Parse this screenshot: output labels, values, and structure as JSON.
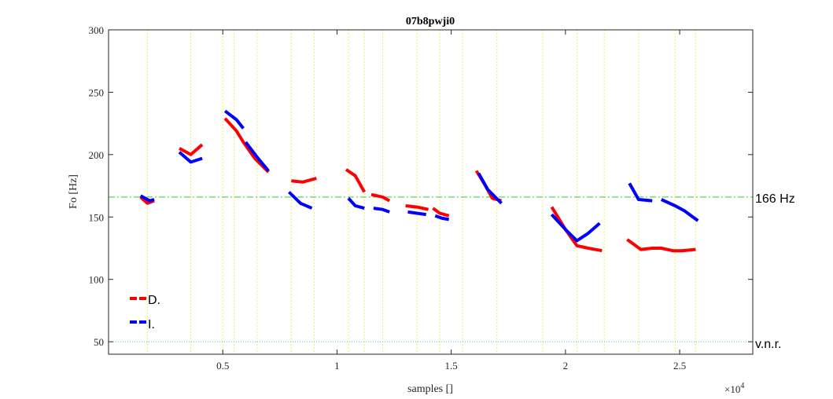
{
  "chart_data": {
    "type": "line",
    "title": "07b8pwji0",
    "xlabel": "samples []",
    "ylabel": "Fo [Hz]",
    "x_exponent": "×10",
    "x_exponent_power": "4",
    "xlim": [
      0,
      28200
    ],
    "ylim": [
      40,
      300
    ],
    "xticks": [
      5000,
      10000,
      15000,
      20000,
      25000
    ],
    "xtick_labels": [
      "0.5",
      "1",
      "1.5",
      "2",
      "2.5"
    ],
    "yticks": [
      50,
      100,
      150,
      200,
      250,
      300
    ],
    "ytick_labels": [
      "50",
      "100",
      "150",
      "200",
      "250",
      "300"
    ],
    "grid": false,
    "legend_position": "bottom-left",
    "reference_lines": [
      {
        "y": 166,
        "label": "166 Hz",
        "color": "#33cc33",
        "style": "dashdot"
      },
      {
        "y": 50,
        "label": "v.n.r.",
        "color": "#33cccc",
        "style": "dotted"
      }
    ],
    "vertical_markers": {
      "color": "#f0f060",
      "x": [
        1700,
        3600,
        5000,
        5500,
        6500,
        8000,
        9000,
        10500,
        11200,
        12000,
        13500,
        14500,
        15500,
        17000,
        19000,
        20500,
        21700,
        23200,
        24800,
        25700
      ]
    },
    "series": [
      {
        "name": "D.",
        "color": "#ff0000",
        "segments": [
          [
            [
              1400,
              166
            ],
            [
              1700,
              161
            ],
            [
              2000,
              163
            ]
          ],
          [
            [
              3100,
              205
            ],
            [
              3600,
              200
            ],
            [
              4100,
              208
            ]
          ],
          [
            [
              5100,
              229
            ],
            [
              5600,
              219
            ],
            [
              5900,
              210
            ],
            [
              6400,
              197
            ],
            [
              7000,
              186
            ]
          ],
          [
            [
              8000,
              179
            ],
            [
              8500,
              178
            ],
            [
              9100,
              181
            ]
          ],
          [
            [
              10400,
              188
            ],
            [
              10800,
              183
            ],
            [
              11200,
              170
            ]
          ],
          [
            [
              11500,
              168
            ],
            [
              12000,
              166
            ],
            [
              12300,
              163
            ]
          ],
          [
            [
              13000,
              159
            ],
            [
              13500,
              158
            ],
            [
              14000,
              156
            ]
          ],
          [
            [
              14200,
              157
            ],
            [
              14500,
              153
            ],
            [
              14900,
              151
            ]
          ],
          [
            [
              16100,
              187
            ],
            [
              16500,
              175
            ],
            [
              16800,
              165
            ],
            [
              17200,
              163
            ]
          ],
          [
            [
              19400,
              158
            ],
            [
              20000,
              140
            ],
            [
              20500,
              127
            ],
            [
              21000,
              125
            ],
            [
              21600,
              123
            ]
          ],
          [
            [
              22700,
              132
            ],
            [
              23300,
              124
            ],
            [
              23800,
              125
            ],
            [
              24200,
              125
            ],
            [
              24700,
              123
            ],
            [
              25100,
              123
            ],
            [
              25700,
              124
            ]
          ]
        ]
      },
      {
        "name": "I.",
        "color": "#0000ff",
        "segments": [
          [
            [
              1400,
              167
            ],
            [
              1800,
              163
            ],
            [
              2000,
              164
            ]
          ],
          [
            [
              3100,
              202
            ],
            [
              3600,
              194
            ],
            [
              4100,
              197
            ]
          ],
          [
            [
              5100,
              235
            ],
            [
              5600,
              228
            ],
            [
              5900,
              221
            ]
          ],
          [
            [
              6000,
              210
            ],
            [
              6500,
              198
            ],
            [
              7000,
              187
            ]
          ],
          [
            [
              7900,
              170
            ],
            [
              8400,
              161
            ],
            [
              8900,
              157
            ]
          ],
          [
            [
              10500,
              165
            ],
            [
              10800,
              159
            ],
            [
              11200,
              157
            ]
          ],
          [
            [
              11600,
              157
            ],
            [
              12000,
              156
            ],
            [
              12300,
              154
            ]
          ],
          [
            [
              13100,
              154
            ],
            [
              13500,
              153
            ],
            [
              13900,
              152
            ]
          ],
          [
            [
              14300,
              151
            ],
            [
              14600,
              149
            ],
            [
              14900,
              148
            ]
          ],
          [
            [
              16200,
              185
            ],
            [
              16600,
              172
            ],
            [
              17200,
              161
            ]
          ],
          [
            [
              19400,
              152
            ],
            [
              20000,
              140
            ],
            [
              20500,
              131
            ],
            [
              21000,
              137
            ],
            [
              21500,
              145
            ]
          ],
          [
            [
              22800,
              177
            ],
            [
              23200,
              164
            ],
            [
              23800,
              163
            ]
          ],
          [
            [
              24200,
              164
            ],
            [
              24800,
              159
            ],
            [
              25200,
              155
            ],
            [
              25800,
              147
            ]
          ]
        ]
      }
    ]
  }
}
